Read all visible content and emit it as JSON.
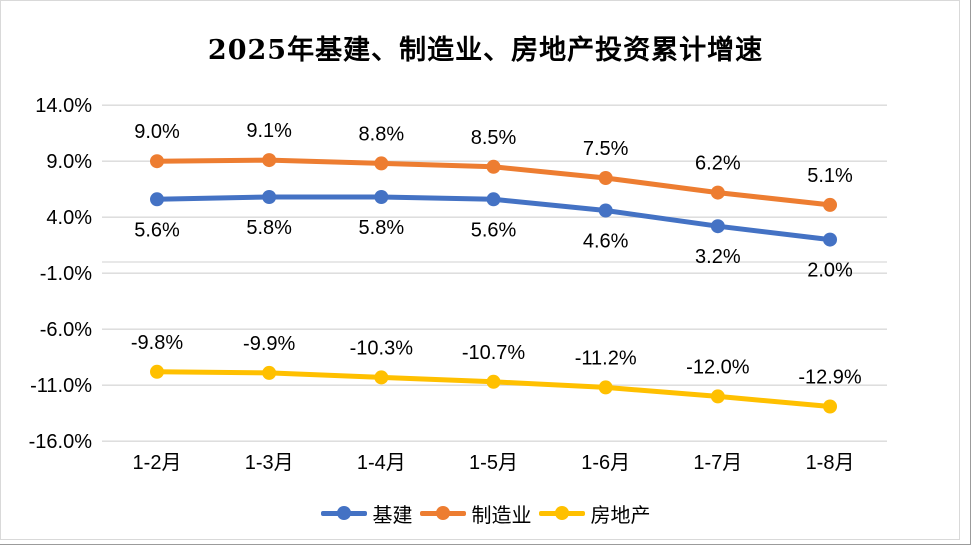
{
  "chart_data": {
    "type": "line",
    "title": "2025年基建、制造业、房地产投资累计增速",
    "categories": [
      "1-2月",
      "1-3月",
      "1-4月",
      "1-5月",
      "1-6月",
      "1-7月",
      "1-8月"
    ],
    "series": [
      {
        "name": "基建",
        "color": "#4472C4",
        "values": [
          5.6,
          5.8,
          5.8,
          5.6,
          4.6,
          3.2,
          2.0
        ],
        "data_labels": [
          "5.6%",
          "5.8%",
          "5.8%",
          "5.6%",
          "4.6%",
          "3.2%",
          "2.0%"
        ],
        "label_position": "below"
      },
      {
        "name": "制造业",
        "color": "#ED7D31",
        "values": [
          9.0,
          9.1,
          8.8,
          8.5,
          7.5,
          6.2,
          5.1
        ],
        "data_labels": [
          "9.0%",
          "9.1%",
          "8.8%",
          "8.5%",
          "7.5%",
          "6.2%",
          "5.1%"
        ],
        "label_position": "above"
      },
      {
        "name": "房地产",
        "color": "#FFC000",
        "values": [
          -9.8,
          -9.9,
          -10.3,
          -10.7,
          -11.2,
          -12.0,
          -12.9
        ],
        "data_labels": [
          "-9.8%",
          "-9.9%",
          "-10.3%",
          "-10.7%",
          "-11.2%",
          "-12.0%",
          "-12.9%"
        ],
        "label_position": "above"
      }
    ],
    "y_axis": {
      "tick_labels": [
        "14.0%",
        "9.0%",
        "4.0%",
        "-1.0%",
        "-6.0%",
        "-11.0%",
        "-16.0%"
      ],
      "tick_values": [
        14,
        9,
        4,
        -1,
        -6,
        -11,
        -16
      ],
      "min": -16,
      "max": 14
    },
    "grid": true,
    "legend_position": "bottom",
    "colors": {
      "gridline": "#d9d9d9",
      "axis_line": "#d9d9d9",
      "text": "#000000"
    }
  }
}
